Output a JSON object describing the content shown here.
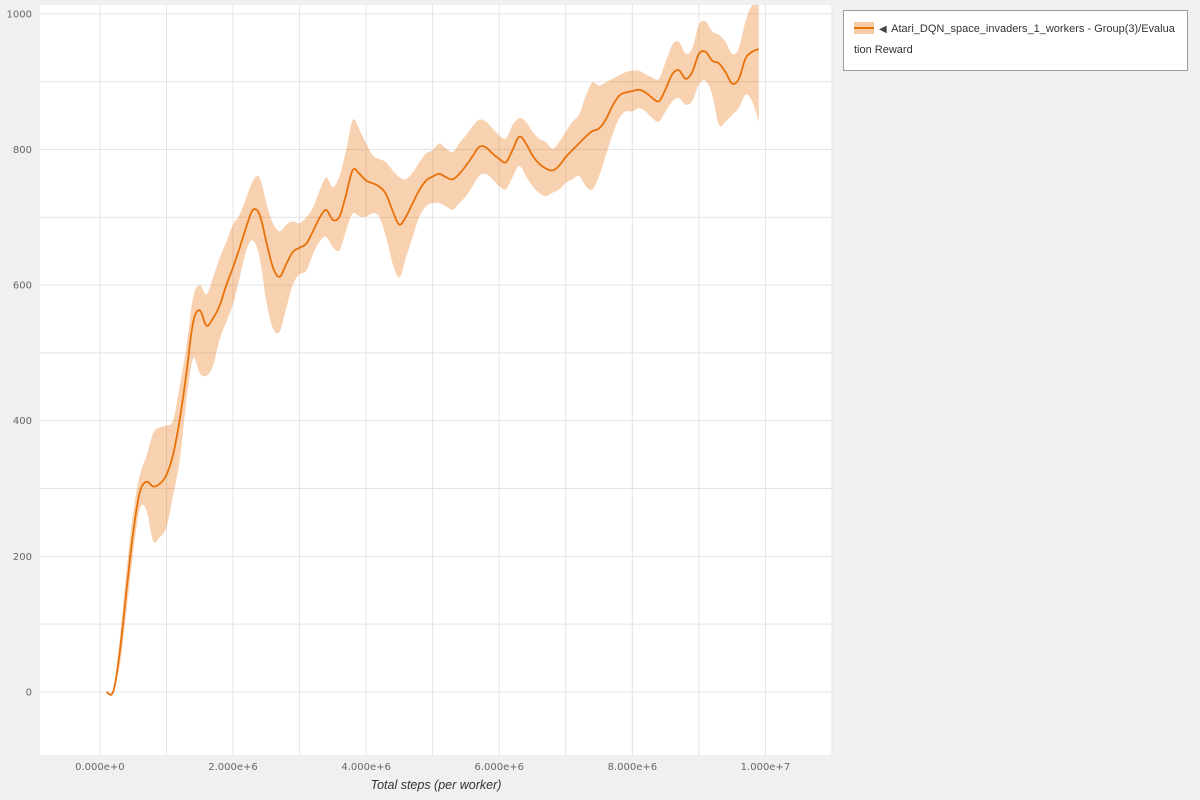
{
  "legend": {
    "arrow": "◀",
    "series_label": "Atari_DQN_space_invaders_1_workers - Group(3)/Evaluation Reward"
  },
  "chart_data": {
    "type": "line",
    "title": "",
    "xlabel": "Total steps (per worker)",
    "ylabel": "",
    "legend_position": "top-right-outside",
    "grid": true,
    "xlim": [
      -900000,
      11000000
    ],
    "ylim": [
      -93,
      1013
    ],
    "x_gridline_step": 1000000,
    "y_gridline_step": 100,
    "xticks": [
      {
        "v": 0,
        "label": "0.000e+0"
      },
      {
        "v": 2000000,
        "label": "2.000e+6"
      },
      {
        "v": 4000000,
        "label": "4.000e+6"
      },
      {
        "v": 6000000,
        "label": "6.000e+6"
      },
      {
        "v": 8000000,
        "label": "8.000e+6"
      },
      {
        "v": 10000000,
        "label": "1.000e+7"
      }
    ],
    "yticks": [
      {
        "v": 0,
        "label": "0"
      },
      {
        "v": 200,
        "label": "200"
      },
      {
        "v": 400,
        "label": "400"
      },
      {
        "v": 600,
        "label": "600"
      },
      {
        "v": 800,
        "label": "800"
      },
      {
        "v": 1000,
        "label": "1000"
      }
    ],
    "line_color": "#e8710a",
    "band_color": "#e8710a",
    "band_opacity": 0.32,
    "series": [
      {
        "name": "Atari_DQN_space_invaders_1_workers - Group(3)/Evaluation Reward",
        "x": [
          100000,
          200000,
          300000,
          400000,
          500000,
          600000,
          700000,
          800000,
          900000,
          1000000,
          1100000,
          1200000,
          1300000,
          1400000,
          1500000,
          1600000,
          1700000,
          1800000,
          1900000,
          2000000,
          2100000,
          2200000,
          2300000,
          2400000,
          2500000,
          2600000,
          2700000,
          2800000,
          2900000,
          3000000,
          3100000,
          3200000,
          3300000,
          3400000,
          3500000,
          3600000,
          3700000,
          3800000,
          3900000,
          4000000,
          4100000,
          4200000,
          4300000,
          4400000,
          4500000,
          4600000,
          4700000,
          4800000,
          4900000,
          5000000,
          5100000,
          5200000,
          5300000,
          5400000,
          5500000,
          5600000,
          5700000,
          5800000,
          5900000,
          6000000,
          6100000,
          6200000,
          6300000,
          6400000,
          6500000,
          6600000,
          6700000,
          6800000,
          6900000,
          7000000,
          7100000,
          7200000,
          7300000,
          7400000,
          7500000,
          7600000,
          7700000,
          7800000,
          7900000,
          8000000,
          8100000,
          8200000,
          8300000,
          8400000,
          8500000,
          8600000,
          8700000,
          8800000,
          8900000,
          9000000,
          9100000,
          9200000,
          9300000,
          9400000,
          9500000,
          9600000,
          9700000,
          9800000,
          9900000
        ],
        "mean": [
          0,
          0,
          60,
          150,
          235,
          295,
          310,
          303,
          307,
          320,
          350,
          402,
          470,
          545,
          563,
          540,
          551,
          570,
          600,
          626,
          655,
          686,
          711,
          704,
          664,
          626,
          612,
          631,
          649,
          655,
          661,
          679,
          699,
          711,
          696,
          701,
          734,
          770,
          764,
          754,
          750,
          745,
          734,
          709,
          689,
          701,
          721,
          740,
          754,
          760,
          764,
          759,
          756,
          764,
          776,
          790,
          804,
          803,
          794,
          786,
          781,
          799,
          819,
          809,
          791,
          779,
          772,
          769,
          776,
          789,
          799,
          809,
          819,
          827,
          831,
          844,
          864,
          879,
          884,
          886,
          888,
          884,
          876,
          871,
          889,
          911,
          917,
          904,
          914,
          941,
          944,
          931,
          927,
          914,
          897,
          904,
          934,
          944,
          948
        ],
        "lower": [
          0,
          0,
          40,
          120,
          205,
          270,
          268,
          222,
          228,
          243,
          290,
          342,
          430,
          492,
          470,
          466,
          481,
          520,
          546,
          571,
          611,
          651,
          666,
          641,
          576,
          536,
          531,
          566,
          601,
          616,
          621,
          645,
          664,
          671,
          656,
          651,
          681,
          706,
          701,
          701,
          706,
          700,
          671,
          631,
          611,
          641,
          671,
          701,
          716,
          721,
          721,
          716,
          711,
          721,
          731,
          746,
          761,
          764,
          756,
          746,
          741,
          759,
          776,
          761,
          746,
          736,
          731,
          736,
          741,
          751,
          756,
          761,
          746,
          741,
          761,
          791,
          821,
          846,
          856,
          856,
          861,
          856,
          846,
          841,
          856,
          871,
          876,
          866,
          871,
          896,
          901,
          881,
          836,
          841,
          851,
          861,
          881,
          871,
          841
        ],
        "upper": [
          0,
          0,
          80,
          180,
          265,
          320,
          348,
          382,
          390,
          393,
          400,
          452,
          510,
          582,
          600,
          586,
          611,
          640,
          664,
          689,
          704,
          729,
          754,
          759,
          721,
          691,
          679,
          689,
          694,
          691,
          700,
          714,
          739,
          759,
          744,
          761,
          799,
          844,
          829,
          809,
          791,
          786,
          781,
          769,
          759,
          756,
          766,
          781,
          794,
          799,
          809,
          801,
          796,
          809,
          821,
          834,
          844,
          841,
          831,
          821,
          816,
          836,
          846,
          841,
          826,
          816,
          811,
          801,
          811,
          826,
          841,
          851,
          879,
          899,
          894,
          899,
          904,
          909,
          914,
          916,
          916,
          911,
          906,
          904,
          929,
          954,
          959,
          941,
          949,
          984,
          989,
          974,
          969,
          959,
          941,
          949,
          989,
          1019,
          1044
        ]
      }
    ]
  }
}
